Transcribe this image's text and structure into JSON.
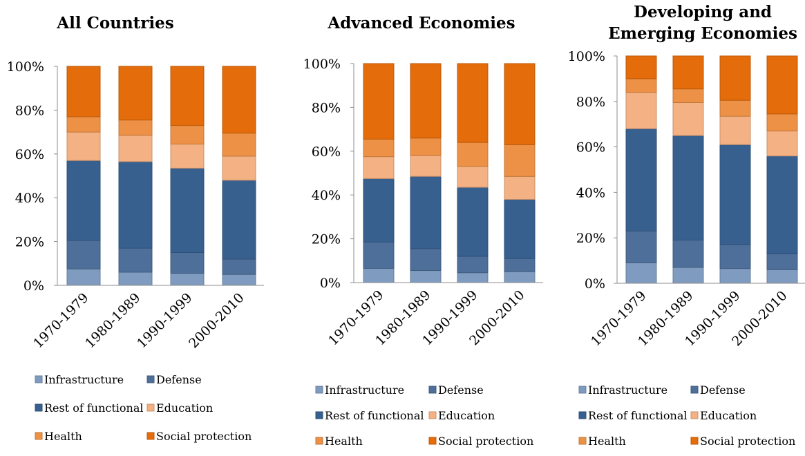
{
  "chart_data": [
    {
      "type": "bar",
      "stacked": true,
      "title": "All Countries",
      "categories": [
        "1970-1979",
        "1980-1989",
        "1990-1999",
        "2000-2010"
      ],
      "yticks": [
        "0%",
        "20%",
        "40%",
        "60%",
        "80%",
        "100%"
      ],
      "ylim": [
        0,
        100
      ],
      "series": [
        {
          "name": "Infrastructure",
          "color": "#7f9bbf",
          "values": [
            7.5,
            6,
            5.5,
            5
          ]
        },
        {
          "name": "Defense",
          "color": "#4e6f99",
          "values": [
            13,
            11,
            9.5,
            7
          ]
        },
        {
          "name": "Rest of functional",
          "color": "#38608f",
          "values": [
            36.5,
            39.5,
            38.5,
            36
          ]
        },
        {
          "name": "Education",
          "color": "#f4b183",
          "values": [
            13,
            12,
            11,
            11
          ]
        },
        {
          "name": "Health",
          "color": "#ed9147",
          "values": [
            7,
            7,
            8.5,
            10.5
          ]
        },
        {
          "name": "Social protection",
          "color": "#e46c0a",
          "values": [
            23,
            24.5,
            27,
            30.5
          ]
        }
      ],
      "legend": "bottom"
    },
    {
      "type": "bar",
      "stacked": true,
      "title": "Advanced Economies",
      "categories": [
        "1970-1979",
        "1980-1989",
        "1990-1999",
        "2000-2010"
      ],
      "yticks": [
        "0%",
        "20%",
        "40%",
        "60%",
        "80%",
        "100%"
      ],
      "ylim": [
        0,
        100
      ],
      "series": [
        {
          "name": "Infrastructure",
          "color": "#7f9bbf",
          "values": [
            6.5,
            5.5,
            4.5,
            5
          ]
        },
        {
          "name": "Defense",
          "color": "#4e6f99",
          "values": [
            12,
            10,
            7.5,
            6
          ]
        },
        {
          "name": "Rest of functional",
          "color": "#38608f",
          "values": [
            29,
            33,
            31.5,
            27
          ]
        },
        {
          "name": "Education",
          "color": "#f4b183",
          "values": [
            10,
            9.5,
            9.5,
            10.5
          ]
        },
        {
          "name": "Health",
          "color": "#ed9147",
          "values": [
            8,
            8,
            11,
            14.5
          ]
        },
        {
          "name": "Social protection",
          "color": "#e46c0a",
          "values": [
            34.5,
            34,
            36,
            37
          ]
        }
      ],
      "legend": "bottom"
    },
    {
      "type": "bar",
      "stacked": true,
      "title": "Developing and Emerging Economies",
      "title_lines": [
        "Developing and",
        "Emerging Economies"
      ],
      "categories": [
        "1970-1979",
        "1980-1989",
        "1990-1999",
        "2000-2010"
      ],
      "yticks": [
        "0%",
        "20%",
        "40%",
        "60%",
        "80%",
        "100%"
      ],
      "ylim": [
        0,
        100
      ],
      "series": [
        {
          "name": "Infrastructure",
          "color": "#7f9bbf",
          "values": [
            9,
            7,
            6.5,
            6
          ]
        },
        {
          "name": "Defense",
          "color": "#4e6f99",
          "values": [
            14,
            12,
            10.5,
            7
          ]
        },
        {
          "name": "Rest of functional",
          "color": "#38608f",
          "values": [
            45,
            46,
            44,
            43
          ]
        },
        {
          "name": "Education",
          "color": "#f4b183",
          "values": [
            16,
            14.5,
            12.5,
            11
          ]
        },
        {
          "name": "Health",
          "color": "#ed9147",
          "values": [
            6,
            6,
            7,
            7.5
          ]
        },
        {
          "name": "Social protection",
          "color": "#e46c0a",
          "values": [
            10,
            14.5,
            19.5,
            25.5
          ]
        }
      ],
      "legend": "bottom"
    }
  ]
}
